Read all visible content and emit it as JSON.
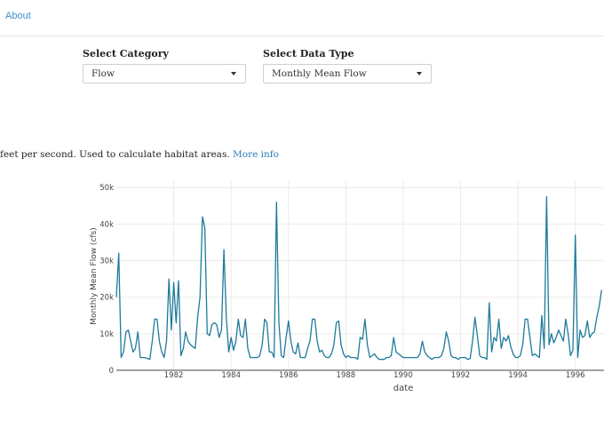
{
  "nav": {
    "about_label": "About"
  },
  "controls": {
    "category": {
      "label": "Select Category",
      "value": "Flow"
    },
    "data_type": {
      "label": "Select Data Type",
      "value": "Monthly Mean Flow"
    }
  },
  "description": {
    "text": "feet per second. Used to calculate habitat areas.",
    "link": "More info"
  },
  "colors": {
    "line": "#1f7a9c",
    "link": "#3a8fd0",
    "grid": "#ebebeb"
  },
  "chart_data": {
    "type": "line",
    "title": "",
    "xlabel": "date",
    "ylabel": "Monthly Mean Flow (cfs)",
    "ylim": [
      0,
      52000
    ],
    "xlim": [
      "1980-01",
      "1997-01"
    ],
    "y_ticks": [
      0,
      10000,
      20000,
      30000,
      40000,
      50000
    ],
    "y_tick_labels": [
      "0",
      "10k",
      "20k",
      "30k",
      "40k",
      "50k"
    ],
    "x_ticks": [
      "1982-01",
      "1984-01",
      "1986-01",
      "1988-01",
      "1990-01",
      "1992-01",
      "1994-01",
      "1996-01"
    ],
    "x_tick_labels": [
      "1982",
      "1984",
      "1986",
      "1988",
      "1990",
      "1992",
      "1994",
      "1996"
    ],
    "grid": true,
    "series": [
      {
        "x": [
          "1980-01",
          "1980-02",
          "1980-03",
          "1980-04",
          "1980-05",
          "1980-06",
          "1980-07",
          "1980-08",
          "1980-09",
          "1980-10",
          "1980-11",
          "1980-12",
          "1981-01",
          "1981-02",
          "1981-03",
          "1981-04",
          "1981-05",
          "1981-06",
          "1981-07",
          "1981-08",
          "1981-09",
          "1981-10",
          "1981-11",
          "1981-12",
          "1982-01",
          "1982-02",
          "1982-03",
          "1982-04",
          "1982-05",
          "1982-06",
          "1982-07",
          "1982-08",
          "1982-09",
          "1982-10",
          "1982-11",
          "1982-12",
          "1983-01",
          "1983-02",
          "1983-03",
          "1983-04",
          "1983-05",
          "1983-06",
          "1983-07",
          "1983-08",
          "1983-09",
          "1983-10",
          "1983-11",
          "1983-12",
          "1984-01",
          "1984-02",
          "1984-03",
          "1984-04",
          "1984-05",
          "1984-06",
          "1984-07",
          "1984-08",
          "1984-09",
          "1984-10",
          "1984-11",
          "1984-12",
          "1985-01",
          "1985-02",
          "1985-03",
          "1985-04",
          "1985-05",
          "1985-06",
          "1985-07",
          "1985-08",
          "1985-09",
          "1985-10",
          "1985-11",
          "1985-12",
          "1986-01",
          "1986-02",
          "1986-03",
          "1986-04",
          "1986-05",
          "1986-06",
          "1986-07",
          "1986-08",
          "1986-09",
          "1986-10",
          "1986-11",
          "1986-12",
          "1987-01",
          "1987-02",
          "1987-03",
          "1987-04",
          "1987-05",
          "1987-06",
          "1987-07",
          "1987-08",
          "1987-09",
          "1987-10",
          "1987-11",
          "1987-12",
          "1988-01",
          "1988-02",
          "1988-03",
          "1988-04",
          "1988-05",
          "1988-06",
          "1988-07",
          "1988-08",
          "1988-09",
          "1988-10",
          "1988-11",
          "1988-12",
          "1989-01",
          "1989-02",
          "1989-03",
          "1989-04",
          "1989-05",
          "1989-06",
          "1989-07",
          "1989-08",
          "1989-09",
          "1989-10",
          "1989-11",
          "1989-12",
          "1990-01",
          "1990-02",
          "1990-03",
          "1990-04",
          "1990-05",
          "1990-06",
          "1990-07",
          "1990-08",
          "1990-09",
          "1990-10",
          "1990-11",
          "1990-12",
          "1991-01",
          "1991-02",
          "1991-03",
          "1991-04",
          "1991-05",
          "1991-06",
          "1991-07",
          "1991-08",
          "1991-09",
          "1991-10",
          "1991-11",
          "1991-12",
          "1992-01",
          "1992-02",
          "1992-03",
          "1992-04",
          "1992-05",
          "1992-06",
          "1992-07",
          "1992-08",
          "1992-09",
          "1992-10",
          "1992-11",
          "1992-12",
          "1993-01",
          "1993-02",
          "1993-03",
          "1993-04",
          "1993-05",
          "1993-06",
          "1993-07",
          "1993-08",
          "1993-09",
          "1993-10",
          "1993-11",
          "1993-12",
          "1994-01",
          "1994-02",
          "1994-03",
          "1994-04",
          "1994-05",
          "1994-06",
          "1994-07",
          "1994-08",
          "1994-09",
          "1994-10",
          "1994-11",
          "1994-12",
          "1995-01",
          "1995-02",
          "1995-03",
          "1995-04",
          "1995-05",
          "1995-06",
          "1995-07",
          "1995-08",
          "1995-09",
          "1995-10",
          "1995-11",
          "1995-12",
          "1996-01",
          "1996-02",
          "1996-03",
          "1996-04",
          "1996-05",
          "1996-06",
          "1996-07",
          "1996-08",
          "1996-09",
          "1996-10",
          "1996-11",
          "1996-12"
        ],
        "y": [
          20000,
          32000,
          3500,
          5000,
          10500,
          11000,
          8000,
          5000,
          6000,
          10500,
          3500,
          3500,
          3500,
          3200,
          3000,
          8000,
          14000,
          14000,
          8000,
          5000,
          3500,
          8000,
          25000,
          11000,
          24000,
          13000,
          24500,
          4000,
          6000,
          10500,
          8000,
          7000,
          6500,
          6000,
          14500,
          20000,
          42000,
          39000,
          10000,
          9500,
          12500,
          13000,
          12500,
          9000,
          11000,
          33000,
          14500,
          5000,
          9000,
          5500,
          8000,
          14000,
          9500,
          9000,
          14000,
          6000,
          3500,
          3500,
          3500,
          3500,
          4000,
          7000,
          14000,
          13000,
          5000,
          5000,
          3500,
          46000,
          13000,
          4000,
          3500,
          9000,
          13500,
          8000,
          5000,
          4500,
          7500,
          3500,
          3500,
          3500,
          6000,
          8000,
          14000,
          14000,
          8000,
          5000,
          5500,
          4000,
          3500,
          3500,
          4500,
          7000,
          13000,
          13500,
          7000,
          4500,
          3500,
          4000,
          3500,
          3500,
          3500,
          3000,
          9000,
          8500,
          14000,
          7000,
          3500,
          4000,
          4500,
          3500,
          3000,
          3000,
          3000,
          3500,
          3500,
          4000,
          9000,
          5000,
          4500,
          4000,
          3500,
          3500,
          3500,
          3500,
          3500,
          3500,
          3500,
          4500,
          8000,
          5000,
          4000,
          3500,
          3000,
          3500,
          3500,
          3500,
          4000,
          6000,
          10500,
          8000,
          4000,
          3500,
          3500,
          3000,
          3500,
          3500,
          3500,
          3000,
          3200,
          8000,
          14500,
          9500,
          4000,
          3500,
          3500,
          3000,
          18500,
          5000,
          9000,
          8000,
          14000,
          6000,
          9000,
          8000,
          9500,
          6500,
          4500,
          3500,
          3500,
          4000,
          7000,
          14000,
          14000,
          9000,
          4000,
          4500,
          4000,
          3500,
          15000,
          6000,
          47500,
          7000,
          10000,
          7500,
          9000,
          11000,
          9500,
          8000,
          14000,
          10000,
          4000,
          5500,
          37000,
          3500,
          11000,
          9000,
          9500,
          13500,
          9000,
          10000,
          10500,
          14500,
          17500,
          22000
        ]
      }
    ]
  }
}
